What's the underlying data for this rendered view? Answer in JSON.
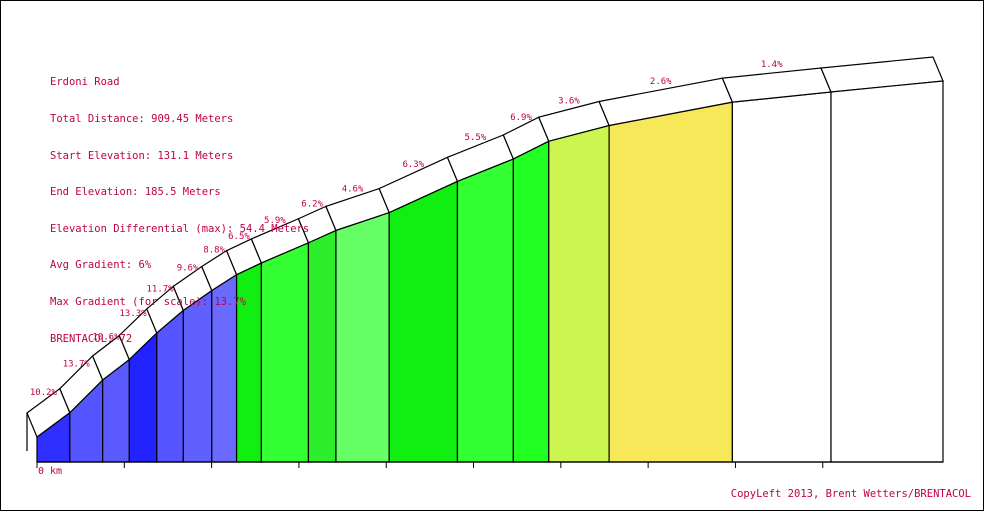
{
  "info": {
    "road": "Erdoni Road",
    "total_distance": "Total Distance: 909.45 Meters",
    "start_elevation": "Start Elevation: 131.1 Meters",
    "end_elevation": "End Elevation: 185.5 Meters",
    "elevation_differential": "Elevation Differential (max): 54.4 Meters",
    "avg_gradient": "Avg Gradient: 6%",
    "max_gradient": "Max Gradient (for scale): 13.7%",
    "brentacol": "BRENTACOL: 72"
  },
  "credit": "CopyLeft 2013, Brent Wetters/BRENTACOL",
  "chart_data": {
    "type": "area",
    "x_label_start": "0 km",
    "x_unit": "m",
    "y_unit": "m",
    "elevation_start": 131.1,
    "elevation_end": 185.5,
    "total_distance": 909.45,
    "segments": [
      {
        "start": 0,
        "end": 37.6,
        "gradient": "10.2%"
      },
      {
        "start": 37.6,
        "end": 75.2,
        "gradient": "13.7%"
      },
      {
        "start": 75.2,
        "end": 105.7,
        "gradient": "10.6%"
      },
      {
        "start": 105.7,
        "end": 137.2,
        "gradient": "13.3%"
      },
      {
        "start": 137.2,
        "end": 167.6,
        "gradient": "11.7%"
      },
      {
        "start": 167.6,
        "end": 200.2,
        "gradient": "9.6%"
      },
      {
        "start": 200.2,
        "end": 228.6,
        "gradient": "8.8%"
      },
      {
        "start": 228.6,
        "end": 257.0,
        "gradient": "6.5%"
      },
      {
        "start": 257.0,
        "end": 310.9,
        "gradient": "5.9%"
      },
      {
        "start": 310.9,
        "end": 342.4,
        "gradient": "6.2%"
      },
      {
        "start": 342.4,
        "end": 403.4,
        "gradient": "4.6%"
      },
      {
        "start": 403.4,
        "end": 481.6,
        "gradient": "6.3%"
      },
      {
        "start": 481.6,
        "end": 545.6,
        "gradient": "5.5%"
      },
      {
        "start": 545.6,
        "end": 586.2,
        "gradient": "6.9%"
      },
      {
        "start": 586.2,
        "end": 655.3,
        "gradient": "3.6%"
      },
      {
        "start": 655.3,
        "end": 796.5,
        "gradient": "2.6%"
      },
      {
        "start": 796.5,
        "end": 909.45,
        "gradient": "1.4%"
      }
    ],
    "elevations": [
      131.1,
      134.94,
      140.09,
      143.32,
      147.51,
      151.07,
      154.2,
      156.7,
      158.55,
      161.73,
      163.68,
      166.49,
      171.42,
      174.94,
      177.74,
      180.22,
      183.9,
      185.5
    ],
    "colors": {
      "gradient_3_5": "#cdf54f",
      "gradient_under_3": "#f7e85a",
      "gradient_under_2": "#ffffff",
      "gradient_4_6": "#33ff33",
      "gradient_6_7": "#11ee11",
      "gradient_light_green": "#66ff66",
      "gradient_8_10": "#6666ff",
      "gradient_10_12": "#5555ff",
      "gradient_12_plus": "#2222ff",
      "label": "#c0004a"
    }
  }
}
